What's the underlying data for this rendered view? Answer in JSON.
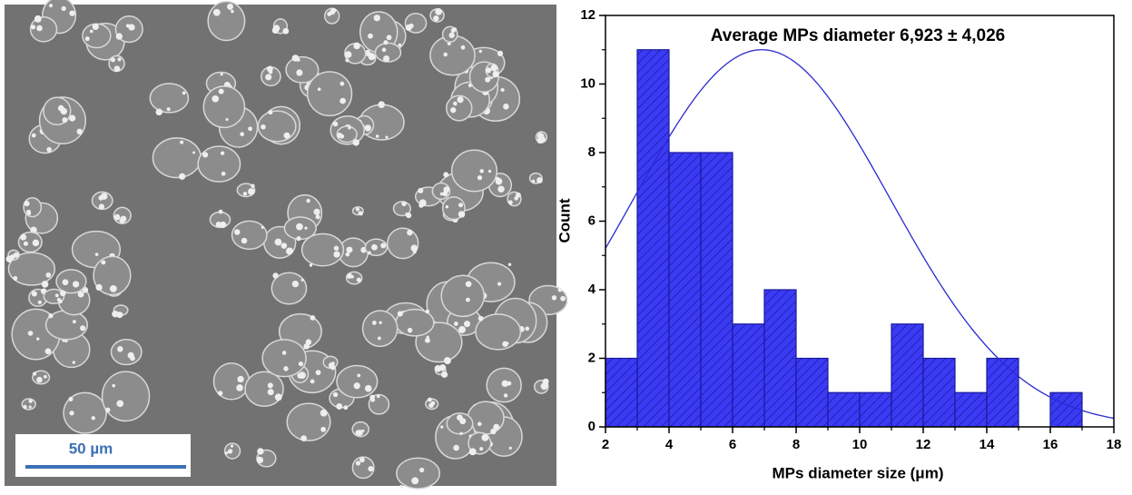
{
  "image": {
    "scale_bar_label": "50 µm"
  },
  "chart_data": {
    "type": "histogram",
    "title": "Average MPs diameter 6,923 ± 4,026",
    "x_label": "MPs diameter size (μm)",
    "y_label": "Count",
    "bins": [
      2,
      3,
      4,
      5,
      6,
      7,
      8,
      9,
      10,
      11,
      12,
      13,
      14,
      15,
      16,
      17
    ],
    "counts": [
      2,
      11,
      8,
      8,
      3,
      4,
      2,
      1,
      1,
      3,
      2,
      1,
      2,
      0,
      1
    ],
    "color": "#3b3bf5",
    "edge_color": "#1a1a9a",
    "fit": {
      "mean": 6.923,
      "sd": 4.026,
      "amplitude": 11,
      "color": "#2a2ad0"
    },
    "xlim": [
      2,
      18
    ],
    "xticks": [
      2,
      4,
      6,
      8,
      10,
      12,
      14,
      16,
      18
    ],
    "ylim": [
      0,
      12
    ],
    "yticks": [
      0,
      2,
      4,
      6,
      8,
      10,
      12
    ]
  }
}
